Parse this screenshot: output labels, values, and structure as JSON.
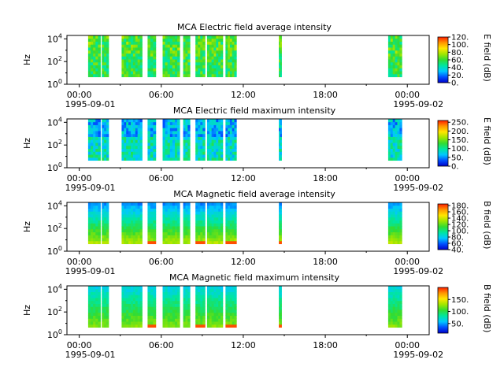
{
  "time_ticks": [
    "00:00",
    "06:00",
    "12:00",
    "18:00",
    "00:00"
  ],
  "date_start": "1995-09-01",
  "date_end": "1995-09-02",
  "colormap": [
    "#0000c8",
    "#0050ff",
    "#00c8ff",
    "#00e6a0",
    "#32dc32",
    "#a0e600",
    "#ffe600",
    "#ff9600",
    "#ff1e00"
  ],
  "chart_data": [
    {
      "type": "heatmap",
      "title": "MCA  Electric field average intensity",
      "ylabel": "Hz",
      "yticks": [
        "10",
        "10",
        "10"
      ],
      "ytick_exp": [
        "0",
        "2",
        "4"
      ],
      "ylim": [
        1,
        20000
      ],
      "xlim": [
        "1995-09-01 00:00",
        "1995-09-02 00:00"
      ],
      "colorbar_label": "E field (dB)",
      "colorbar_ticks": [
        "120",
        "100",
        "80",
        "60",
        "40",
        "20",
        "0"
      ],
      "colorbar_range": [
        0,
        120
      ],
      "segments_hours": [
        [
          0.65,
          1.55
        ],
        [
          1.65,
          2.15
        ],
        [
          3.1,
          4.6
        ],
        [
          5.0,
          5.6
        ],
        [
          6.1,
          7.35
        ],
        [
          7.6,
          8.1
        ],
        [
          8.5,
          9.2
        ],
        [
          9.35,
          10.5
        ],
        [
          10.7,
          11.5
        ],
        [
          14.6,
          14.8
        ],
        [
          22.6,
          23.6
        ]
      ],
      "base_level": 45
    },
    {
      "type": "heatmap",
      "title": "MCA  Electric field maximum intensity",
      "ylabel": "Hz",
      "yticks": [
        "10",
        "10",
        "10"
      ],
      "ytick_exp": [
        "0",
        "2",
        "4"
      ],
      "ylim": [
        1,
        20000
      ],
      "xlim": [
        "1995-09-01 00:00",
        "1995-09-02 00:00"
      ],
      "colorbar_label": "E field (dB)",
      "colorbar_ticks": [
        "250",
        "200",
        "150",
        "100",
        "50",
        "0"
      ],
      "colorbar_range": [
        0,
        260
      ],
      "segments_hours": [
        [
          0.65,
          1.55
        ],
        [
          1.65,
          2.15
        ],
        [
          3.1,
          4.6
        ],
        [
          5.0,
          5.6
        ],
        [
          6.1,
          7.35
        ],
        [
          7.6,
          8.1
        ],
        [
          8.5,
          9.2
        ],
        [
          9.35,
          10.5
        ],
        [
          10.7,
          11.5
        ],
        [
          14.6,
          14.8
        ],
        [
          22.6,
          23.6
        ]
      ],
      "base_level": 75
    },
    {
      "type": "heatmap",
      "title": "MCA  Magnetic field average intensity",
      "ylabel": "Hz",
      "yticks": [
        "10",
        "10",
        "10"
      ],
      "ytick_exp": [
        "0",
        "2",
        "4"
      ],
      "ylim": [
        1,
        20000
      ],
      "xlim": [
        "1995-09-01 00:00",
        "1995-09-02 00:00"
      ],
      "colorbar_label": "B field (dB)",
      "colorbar_ticks": [
        "180",
        "160",
        "140",
        "120",
        "100",
        "80",
        "60",
        "40"
      ],
      "colorbar_range": [
        40,
        185
      ],
      "segments_hours": [
        [
          0.65,
          1.55
        ],
        [
          1.65,
          2.15
        ],
        [
          3.1,
          4.6
        ],
        [
          5.0,
          5.6
        ],
        [
          6.1,
          7.35
        ],
        [
          7.6,
          8.1
        ],
        [
          8.5,
          9.2
        ],
        [
          9.35,
          10.5
        ],
        [
          10.7,
          11.5
        ],
        [
          14.6,
          14.8
        ],
        [
          22.6,
          23.6
        ]
      ],
      "base_level": 105
    },
    {
      "type": "heatmap",
      "title": "MCA  Magnetic field maximum intensity",
      "ylabel": "Hz",
      "yticks": [
        "10",
        "10",
        "10"
      ],
      "ytick_exp": [
        "0",
        "2",
        "4"
      ],
      "ylim": [
        1,
        20000
      ],
      "xlim": [
        "1995-09-01 00:00",
        "1995-09-02 00:00"
      ],
      "colorbar_label": "B field (dB)",
      "colorbar_ticks": [
        "150",
        "100",
        "50"
      ],
      "colorbar_range": [
        10,
        200
      ],
      "segments_hours": [
        [
          0.65,
          1.55
        ],
        [
          1.65,
          2.15
        ],
        [
          3.1,
          4.6
        ],
        [
          5.0,
          5.6
        ],
        [
          6.1,
          7.35
        ],
        [
          7.6,
          8.1
        ],
        [
          8.5,
          9.2
        ],
        [
          9.35,
          10.5
        ],
        [
          10.7,
          11.5
        ],
        [
          14.6,
          14.8
        ],
        [
          22.6,
          23.6
        ]
      ],
      "base_level": 95
    }
  ]
}
